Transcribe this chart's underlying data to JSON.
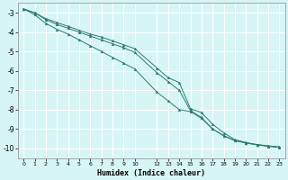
{
  "xlabel": "Humidex (Indice chaleur)",
  "bg_color": "#d8f5f5",
  "grid_color": "#ffffff",
  "line_color": "#2e7d6e",
  "xlim": [
    -0.5,
    23.5
  ],
  "ylim": [
    -10.5,
    -2.5
  ],
  "yticks": [
    -10,
    -9,
    -8,
    -7,
    -6,
    -5,
    -4,
    -3
  ],
  "xticks": [
    0,
    1,
    2,
    3,
    4,
    5,
    6,
    7,
    8,
    9,
    10,
    12,
    13,
    14,
    15,
    16,
    17,
    18,
    19,
    20,
    21,
    22,
    23
  ],
  "series": [
    {
      "x": [
        0,
        1,
        2,
        3,
        4,
        5,
        6,
        7,
        8,
        9,
        10,
        12,
        13,
        14,
        15,
        16,
        17,
        18,
        19,
        20,
        21,
        22,
        23
      ],
      "y": [
        -2.8,
        -3.0,
        -3.3,
        -3.5,
        -3.7,
        -3.9,
        -4.1,
        -4.25,
        -4.45,
        -4.65,
        -4.85,
        -5.85,
        -6.35,
        -6.6,
        -7.95,
        -8.15,
        -8.75,
        -9.2,
        -9.55,
        -9.7,
        -9.8,
        -9.87,
        -9.93
      ]
    },
    {
      "x": [
        0,
        1,
        2,
        3,
        4,
        5,
        6,
        7,
        8,
        9,
        10,
        12,
        13,
        14,
        15,
        16,
        17,
        18,
        19,
        20,
        21,
        22,
        23
      ],
      "y": [
        -2.8,
        -3.0,
        -3.35,
        -3.6,
        -3.8,
        -4.0,
        -4.2,
        -4.4,
        -4.6,
        -4.8,
        -5.05,
        -6.1,
        -6.55,
        -7.0,
        -8.05,
        -8.4,
        -9.0,
        -9.35,
        -9.6,
        -9.72,
        -9.82,
        -9.88,
        -9.93
      ]
    },
    {
      "x": [
        0,
        1,
        2,
        3,
        4,
        5,
        6,
        7,
        8,
        9,
        10,
        12,
        13,
        14,
        15,
        16,
        17,
        18,
        19,
        20,
        21,
        22,
        23
      ],
      "y": [
        -2.8,
        -3.1,
        -3.55,
        -3.85,
        -4.1,
        -4.4,
        -4.7,
        -5.0,
        -5.3,
        -5.6,
        -5.9,
        -7.1,
        -7.55,
        -8.0,
        -8.1,
        -8.45,
        -9.0,
        -9.35,
        -9.6,
        -9.72,
        -9.82,
        -9.9,
        -9.95
      ]
    }
  ]
}
